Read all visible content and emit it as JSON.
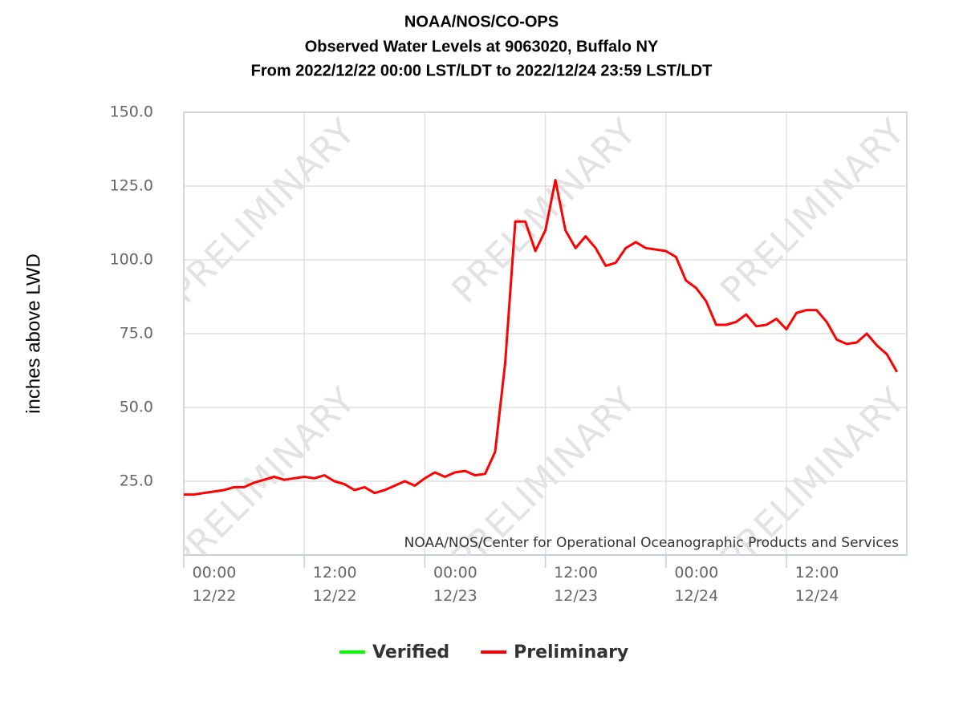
{
  "chart_data": {
    "type": "line",
    "title": [
      "NOAA/NOS/CO-OPS",
      "Observed Water Levels at 9063020, Buffalo NY",
      "From 2022/12/22 00:00 LST/LDT to 2022/12/24 23:59 LST/LDT"
    ],
    "ylabel": "inches above LWD",
    "credit": "NOAA/NOS/Center for Operational Oceanographic Products and Services",
    "watermark": "PRELIMINARY",
    "x": [
      "12/22 00:00",
      "12/22 01:00",
      "12/22 02:00",
      "12/22 03:00",
      "12/22 04:00",
      "12/22 05:00",
      "12/22 06:00",
      "12/22 07:00",
      "12/22 08:00",
      "12/22 09:00",
      "12/22 10:00",
      "12/22 11:00",
      "12/22 12:00",
      "12/22 13:00",
      "12/22 14:00",
      "12/22 15:00",
      "12/22 16:00",
      "12/22 17:00",
      "12/22 18:00",
      "12/22 19:00",
      "12/22 20:00",
      "12/22 21:00",
      "12/22 22:00",
      "12/22 23:00",
      "12/23 00:00",
      "12/23 01:00",
      "12/23 02:00",
      "12/23 03:00",
      "12/23 04:00",
      "12/23 05:00",
      "12/23 06:00",
      "12/23 07:00",
      "12/23 08:00",
      "12/23 09:00",
      "12/23 10:00",
      "12/23 11:00",
      "12/23 12:00",
      "12/23 13:00",
      "12/23 14:00",
      "12/23 15:00",
      "12/23 16:00",
      "12/23 17:00",
      "12/23 18:00",
      "12/23 19:00",
      "12/23 20:00",
      "12/23 21:00",
      "12/23 22:00",
      "12/23 23:00",
      "12/24 00:00",
      "12/24 01:00",
      "12/24 02:00",
      "12/24 03:00",
      "12/24 04:00",
      "12/24 05:00",
      "12/24 06:00",
      "12/24 07:00",
      "12/24 08:00",
      "12/24 09:00",
      "12/24 10:00",
      "12/24 11:00",
      "12/24 12:00",
      "12/24 13:00",
      "12/24 14:00",
      "12/24 15:00",
      "12/24 16:00",
      "12/24 17:00",
      "12/24 18:00",
      "12/24 19:00",
      "12/24 20:00",
      "12/24 21:00",
      "12/24 22:00",
      "12/24 23:00"
    ],
    "series": [
      {
        "name": "Verified",
        "color": "#00ff00",
        "values": [
          null,
          null,
          null,
          null,
          null,
          null,
          null,
          null,
          null,
          null,
          null,
          null,
          null,
          null,
          null,
          null,
          null,
          null,
          null,
          null,
          null,
          null,
          null,
          null,
          null,
          null,
          null,
          null,
          null,
          null,
          null,
          null,
          null,
          null,
          null,
          null,
          null,
          null,
          null,
          null,
          null,
          null,
          null,
          null,
          null,
          null,
          null,
          null,
          null,
          null,
          null,
          null,
          null,
          null,
          null,
          null,
          null,
          null,
          null,
          null,
          null,
          null,
          null,
          null,
          null,
          null,
          null,
          null,
          null,
          null,
          null,
          null
        ]
      },
      {
        "name": "Preliminary",
        "color": "#ff0000",
        "values": [
          20.5,
          20.5,
          21,
          21.5,
          22,
          23,
          23,
          24.5,
          25.5,
          26.5,
          25.5,
          26,
          26.5,
          26,
          27,
          25,
          24,
          22,
          23,
          21,
          22,
          23.5,
          25,
          23.5,
          26,
          28,
          26.5,
          28,
          28.5,
          27,
          27.5,
          35,
          65,
          113,
          113,
          103,
          110,
          127,
          110,
          104,
          108,
          104,
          98,
          99,
          104,
          106,
          104,
          103.5,
          103,
          101,
          93,
          90.5,
          86,
          78,
          78,
          79,
          81.5,
          77.5,
          78,
          80,
          76.5,
          82,
          83,
          83,
          79,
          73,
          71.5,
          72,
          75,
          71,
          68,
          62
        ]
      }
    ],
    "xlim": [
      "12/22 00:00",
      "12/24 23:59"
    ],
    "xticks": [
      {
        "value": "12/22 00:00",
        "label": "00:00 12/22"
      },
      {
        "value": "12/22 12:00",
        "label": "12:00 12/22"
      },
      {
        "value": "12/23 00:00",
        "label": "00:00 12/23"
      },
      {
        "value": "12/23 12:00",
        "label": "12:00 12/23"
      },
      {
        "value": "12/24 00:00",
        "label": "00:00 12/24"
      },
      {
        "value": "12/24 12:00",
        "label": "12:00 12/24"
      }
    ],
    "ylim": [
      0,
      150
    ],
    "yticks": [
      {
        "value": 25,
        "label": "25.0"
      },
      {
        "value": 50,
        "label": "50.0"
      },
      {
        "value": 75,
        "label": "75.0"
      },
      {
        "value": 100,
        "label": "100.0"
      },
      {
        "value": 125,
        "label": "125.0"
      },
      {
        "value": 150,
        "label": "150.0"
      }
    ],
    "grid": true,
    "legend": "bottom"
  }
}
